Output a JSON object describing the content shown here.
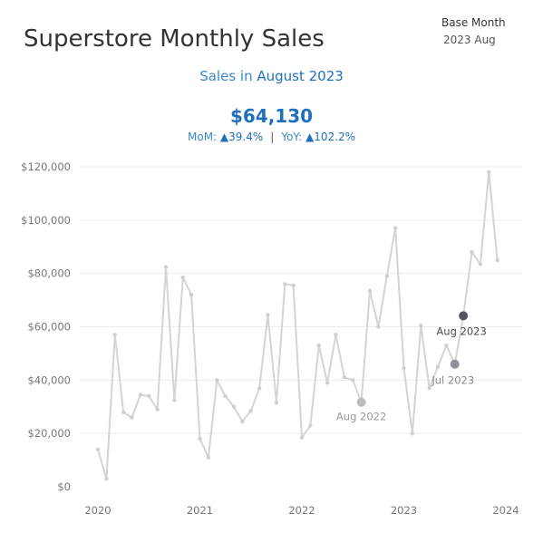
{
  "header": {
    "title": "Superstore Monthly Sales",
    "base_month_label": "Base Month",
    "base_month_value": "2023 Aug"
  },
  "summary": {
    "subtitle_prefix": "Sales in ",
    "subtitle_month": "August 2023",
    "kpi_value": "$64,130",
    "mom_label": "MoM:",
    "mom_value": "▲39.4%",
    "separator": "|",
    "yoy_label": "YoY:",
    "yoy_value": "▲102.2%"
  },
  "colors": {
    "line": "#d4d4d4",
    "point": "#cfcfcf",
    "highlight_current": "#55555f",
    "highlight_prev_month": "#909099",
    "highlight_prev_year": "#bdbdbd",
    "accent_blue": "#1f6fbf",
    "grid": "#ececec"
  },
  "chart_data": {
    "type": "line",
    "title": "Superstore Monthly Sales",
    "xlabel": "",
    "ylabel": "",
    "grid": true,
    "y_ticks": [
      0,
      20000,
      40000,
      60000,
      80000,
      100000,
      120000
    ],
    "y_tick_labels": [
      "$0",
      "$20,000",
      "$40,000",
      "$60,000",
      "$80,000",
      "$100,000",
      "$120,000"
    ],
    "ylim": [
      0,
      125000
    ],
    "x_ticks": [
      "2020",
      "2021",
      "2022",
      "2023",
      "2024"
    ],
    "x_range": [
      "2020-01",
      "2024-01"
    ],
    "series": [
      {
        "x": [
          "2020-01",
          "2020-02",
          "2020-03",
          "2020-04",
          "2020-05",
          "2020-06",
          "2020-07",
          "2020-08",
          "2020-09",
          "2020-10",
          "2020-11",
          "2020-12",
          "2021-01",
          "2021-02",
          "2021-03",
          "2021-04",
          "2021-05",
          "2021-06",
          "2021-07",
          "2021-08",
          "2021-09",
          "2021-10",
          "2021-11",
          "2021-12",
          "2022-01",
          "2022-02",
          "2022-03",
          "2022-04",
          "2022-05",
          "2022-06",
          "2022-07",
          "2022-08",
          "2022-09",
          "2022-10",
          "2022-11",
          "2022-12",
          "2023-01",
          "2023-02",
          "2023-03",
          "2023-04",
          "2023-05",
          "2023-06",
          "2023-07",
          "2023-08",
          "2023-09",
          "2023-10",
          "2023-11",
          "2023-12"
        ],
        "values": [
          14000,
          3000,
          57000,
          28000,
          26000,
          34500,
          34000,
          29000,
          82500,
          32500,
          78500,
          72000,
          18000,
          11000,
          40000,
          34000,
          30000,
          24500,
          28500,
          37000,
          64500,
          31500,
          76000,
          75500,
          18500,
          23000,
          53000,
          39000,
          57000,
          41000,
          40000,
          31700,
          73500,
          60000,
          79000,
          97000,
          44500,
          20000,
          60500,
          37000,
          45000,
          53000,
          46000,
          64130,
          88000,
          83500,
          118000,
          85000
        ]
      }
    ],
    "highlights": [
      {
        "x": "2022-08",
        "label": "Aug 2022",
        "value": 31700
      },
      {
        "x": "2023-07",
        "label": "Jul 2023",
        "value": 46000
      },
      {
        "x": "2023-08",
        "label": "Aug 2023",
        "value": 64130
      }
    ]
  }
}
